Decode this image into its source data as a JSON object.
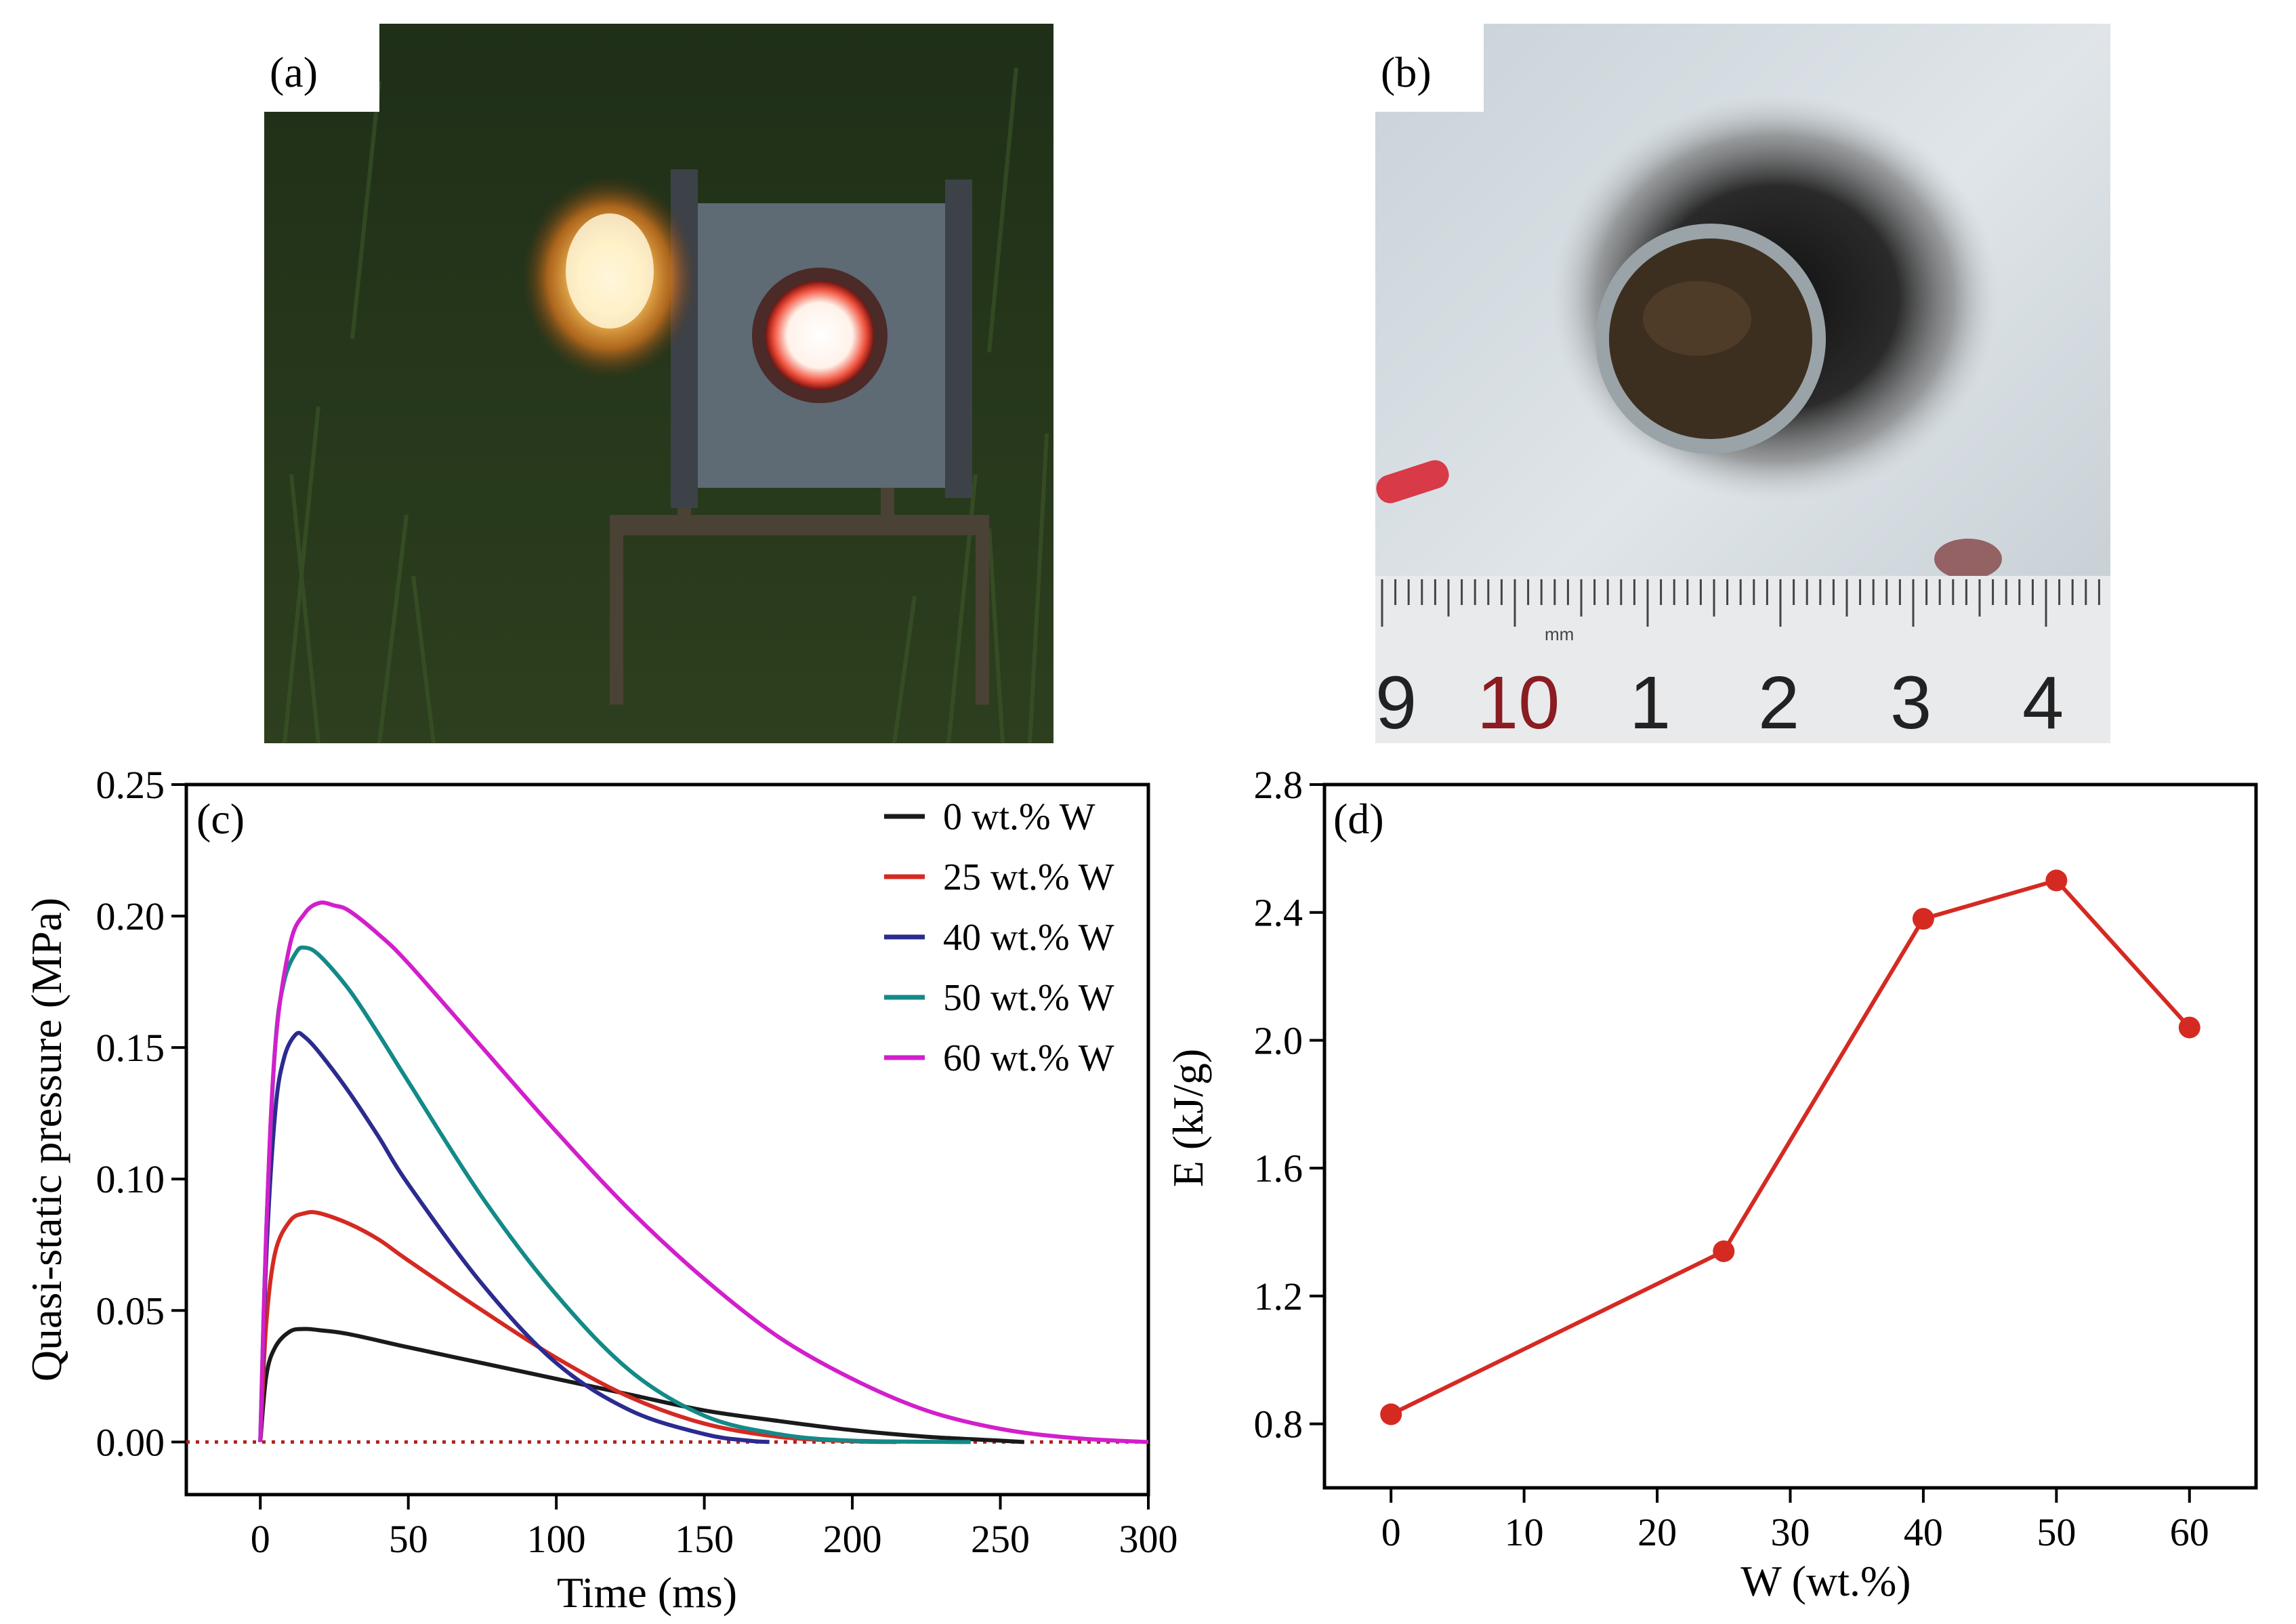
{
  "panel_labels": {
    "a": "(a)",
    "b": "(b)",
    "c": "(c)",
    "d": "(d)"
  },
  "photo_b_ruler": {
    "unit_label": "mm",
    "numbers": [
      "9",
      "10",
      "1",
      "2",
      "3",
      "4"
    ]
  },
  "colors": {
    "s0": "#1a1a1a",
    "s25": "#d42a22",
    "s40": "#2b2b8f",
    "s50": "#138a88",
    "s60": "#d21fcc",
    "zero_line": "#b32020",
    "d_line": "#d42a22"
  },
  "chart_data": [
    {
      "id": "c",
      "type": "line",
      "title": "",
      "xlabel": "Time (ms)",
      "ylabel": "Quasi-static pressure (MPa)",
      "xlim": [
        -25,
        300
      ],
      "ylim": [
        -0.02,
        0.25
      ],
      "xticks": [
        0,
        50,
        100,
        150,
        200,
        250,
        300
      ],
      "yticks": [
        0.0,
        0.05,
        0.1,
        0.15,
        0.2,
        0.25
      ],
      "ytick_labels": [
        "0.00",
        "0.05",
        "0.10",
        "0.15",
        "0.20",
        "0.25"
      ],
      "legend_position": "top-right",
      "zero_line": {
        "y": 0,
        "style": "dotted"
      },
      "series": [
        {
          "name": "0 wt.% W",
          "color_key": "s0",
          "x": [
            0,
            2,
            5,
            10,
            15,
            20,
            30,
            50,
            75,
            100,
            125,
            150,
            175,
            200,
            225,
            250,
            258
          ],
          "y": [
            0,
            0.025,
            0.036,
            0.042,
            0.043,
            0.0425,
            0.041,
            0.036,
            0.03,
            0.024,
            0.018,
            0.012,
            0.008,
            0.0045,
            0.002,
            0.0005,
            0
          ]
        },
        {
          "name": "25 wt.% W",
          "color_key": "s25",
          "x": [
            0,
            2,
            5,
            10,
            15,
            20,
            30,
            40,
            50,
            75,
            100,
            125,
            150,
            175,
            200,
            215
          ],
          "y": [
            0,
            0.045,
            0.072,
            0.084,
            0.087,
            0.087,
            0.083,
            0.077,
            0.069,
            0.05,
            0.032,
            0.017,
            0.007,
            0.002,
            0.0003,
            0
          ]
        },
        {
          "name": "40 wt.% W",
          "color_key": "s40",
          "x": [
            0,
            2,
            5,
            8,
            12,
            15,
            20,
            30,
            40,
            50,
            75,
            100,
            125,
            150,
            165,
            172
          ],
          "y": [
            0,
            0.07,
            0.125,
            0.146,
            0.155,
            0.154,
            0.148,
            0.133,
            0.116,
            0.098,
            0.06,
            0.03,
            0.012,
            0.003,
            0.0005,
            0
          ]
        },
        {
          "name": "50 wt.% W",
          "color_key": "s50",
          "x": [
            0,
            2,
            5,
            8,
            12,
            15,
            20,
            30,
            40,
            50,
            75,
            100,
            125,
            150,
            175,
            200,
            240
          ],
          "y": [
            0,
            0.08,
            0.15,
            0.175,
            0.186,
            0.188,
            0.185,
            0.172,
            0.155,
            0.137,
            0.093,
            0.056,
            0.027,
            0.01,
            0.003,
            0.0005,
            0
          ]
        },
        {
          "name": "60 wt.% W",
          "color_key": "s60",
          "x": [
            0,
            2,
            5,
            10,
            15,
            20,
            25,
            30,
            40,
            50,
            75,
            100,
            125,
            150,
            175,
            200,
            225,
            250,
            275,
            300
          ],
          "y": [
            0,
            0.08,
            0.15,
            0.189,
            0.201,
            0.205,
            0.204,
            0.202,
            0.193,
            0.182,
            0.15,
            0.118,
            0.088,
            0.062,
            0.04,
            0.024,
            0.012,
            0.005,
            0.0015,
            0
          ]
        }
      ]
    },
    {
      "id": "d",
      "type": "line",
      "title": "",
      "xlabel": "W (wt.%)",
      "ylabel": "E (kJ/g)",
      "xlim": [
        -5,
        65
      ],
      "ylim": [
        0.6,
        2.8
      ],
      "xticks": [
        0,
        10,
        20,
        30,
        40,
        50,
        60
      ],
      "yticks": [
        0.8,
        1.2,
        1.6,
        2.0,
        2.4,
        2.8
      ],
      "ytick_labels": [
        "0.8",
        "1.2",
        "1.6",
        "2.0",
        "2.4",
        "2.8"
      ],
      "series": [
        {
          "name": "E",
          "color_key": "d_line",
          "markers": true,
          "x": [
            0,
            25,
            40,
            50,
            60
          ],
          "y": [
            0.83,
            1.34,
            2.38,
            2.5,
            2.04
          ]
        }
      ]
    }
  ]
}
